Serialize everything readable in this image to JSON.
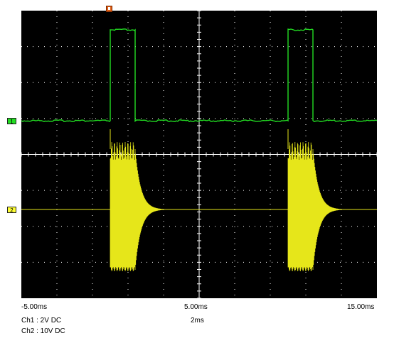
{
  "colors": {
    "screen_background": "#000000",
    "grid": "#ffffff",
    "ch1_trace": "#22dd22",
    "ch2_trace": "#e6e61a",
    "ch1_marker": "#22dd22",
    "ch2_marker": "#ffff33",
    "trigger_marker": "#e06018"
  },
  "screen": {
    "divisions_x": 10,
    "divisions_y": 8
  },
  "markers": {
    "ch1": "1",
    "ch2": "2",
    "trigger_icon": "trigger-position-marker-icon"
  },
  "axis": {
    "tick_left": "-5.00ms",
    "tick_mid": "5.00ms",
    "tick_right": "15.00ms"
  },
  "settings": {
    "ch1": "Ch1 : 2V  DC",
    "ch2": "Ch2 : 10V  DC",
    "timebase": "2ms"
  },
  "signals": {
    "time_start_ms": -5,
    "time_end_ms": 15,
    "ch1_pulses_ms": [
      [
        0.0,
        1.4
      ],
      [
        10.0,
        11.4
      ]
    ],
    "ch2_bursts_ms": [
      [
        0.0,
        1.4
      ],
      [
        10.0,
        11.4
      ]
    ]
  }
}
